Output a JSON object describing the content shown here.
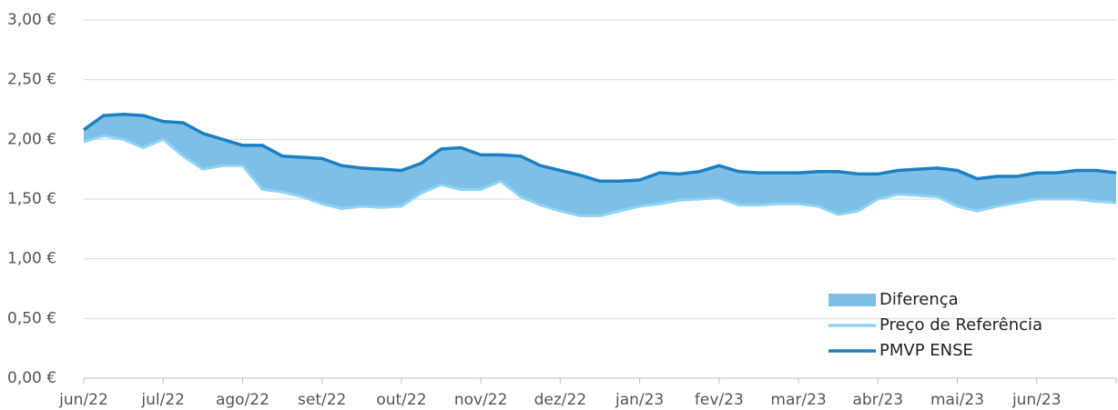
{
  "chart_data": {
    "type": "line",
    "categories": [
      "jun/22",
      null,
      null,
      null,
      "jul/22",
      null,
      null,
      null,
      "ago/22",
      null,
      null,
      null,
      "set/22",
      null,
      null,
      null,
      "out/22",
      null,
      null,
      null,
      "nov/22",
      null,
      null,
      null,
      "dez/22",
      null,
      null,
      null,
      "jan/23",
      null,
      null,
      null,
      "fev/23",
      null,
      null,
      null,
      "mar/23",
      null,
      null,
      null,
      "abr/23",
      null,
      null,
      null,
      "mai/23",
      null,
      null,
      null,
      "jun/23",
      null,
      null,
      null,
      null
    ],
    "series": [
      {
        "name": "Diferença",
        "color": "#80bfe5",
        "kind": "area",
        "stacked_on": "Preço de Referência",
        "values": [
          0.1,
          0.17,
          0.21,
          0.27,
          0.15,
          0.28,
          0.3,
          0.22,
          0.17,
          0.37,
          0.3,
          0.33,
          0.38,
          0.36,
          0.32,
          0.32,
          0.3,
          0.25,
          0.3,
          0.35,
          0.29,
          0.22,
          0.34,
          0.33,
          0.34,
          0.34,
          0.29,
          0.25,
          0.22,
          0.26,
          0.22,
          0.23,
          0.27,
          0.28,
          0.27,
          0.26,
          0.26,
          0.29,
          0.36,
          0.31,
          0.21,
          0.2,
          0.22,
          0.24,
          0.3,
          0.27,
          0.25,
          0.22,
          0.22,
          0.22,
          0.24,
          0.26,
          0.25
        ]
      },
      {
        "name": "Preço de Referência",
        "color": "#8ed4f6",
        "values": [
          1.98,
          2.03,
          2.0,
          1.93,
          2.0,
          1.86,
          1.75,
          1.78,
          1.78,
          1.58,
          1.56,
          1.52,
          1.46,
          1.42,
          1.44,
          1.43,
          1.44,
          1.55,
          1.62,
          1.58,
          1.58,
          1.65,
          1.52,
          1.45,
          1.4,
          1.36,
          1.36,
          1.4,
          1.44,
          1.46,
          1.49,
          1.5,
          1.51,
          1.45,
          1.45,
          1.46,
          1.46,
          1.44,
          1.37,
          1.4,
          1.5,
          1.54,
          1.53,
          1.52,
          1.44,
          1.4,
          1.44,
          1.47,
          1.5,
          1.5,
          1.5,
          1.48,
          1.47
        ]
      },
      {
        "name": "PMVP ENSE",
        "color": "#1a7fc3",
        "values": [
          2.08,
          2.2,
          2.21,
          2.2,
          2.15,
          2.14,
          2.05,
          2.0,
          1.95,
          1.95,
          1.86,
          1.85,
          1.84,
          1.78,
          1.76,
          1.75,
          1.74,
          1.8,
          1.92,
          1.93,
          1.87,
          1.87,
          1.86,
          1.78,
          1.74,
          1.7,
          1.65,
          1.65,
          1.66,
          1.72,
          1.71,
          1.73,
          1.78,
          1.73,
          1.72,
          1.72,
          1.72,
          1.73,
          1.73,
          1.71,
          1.71,
          1.74,
          1.75,
          1.76,
          1.74,
          1.67,
          1.69,
          1.69,
          1.72,
          1.72,
          1.74,
          1.74,
          1.72
        ]
      }
    ],
    "ylim": [
      0,
      3
    ],
    "yticks": [
      {
        "value": 0,
        "label": "0,00 €"
      },
      {
        "value": 0.5,
        "label": "0,50 €"
      },
      {
        "value": 1,
        "label": "1,00 €"
      },
      {
        "value": 1.5,
        "label": "1,50 €"
      },
      {
        "value": 2,
        "label": "2,00 €"
      },
      {
        "value": 2.5,
        "label": "2,50 €"
      },
      {
        "value": 3,
        "label": "3,00 €"
      }
    ],
    "grid": true,
    "legend": "lower right"
  }
}
